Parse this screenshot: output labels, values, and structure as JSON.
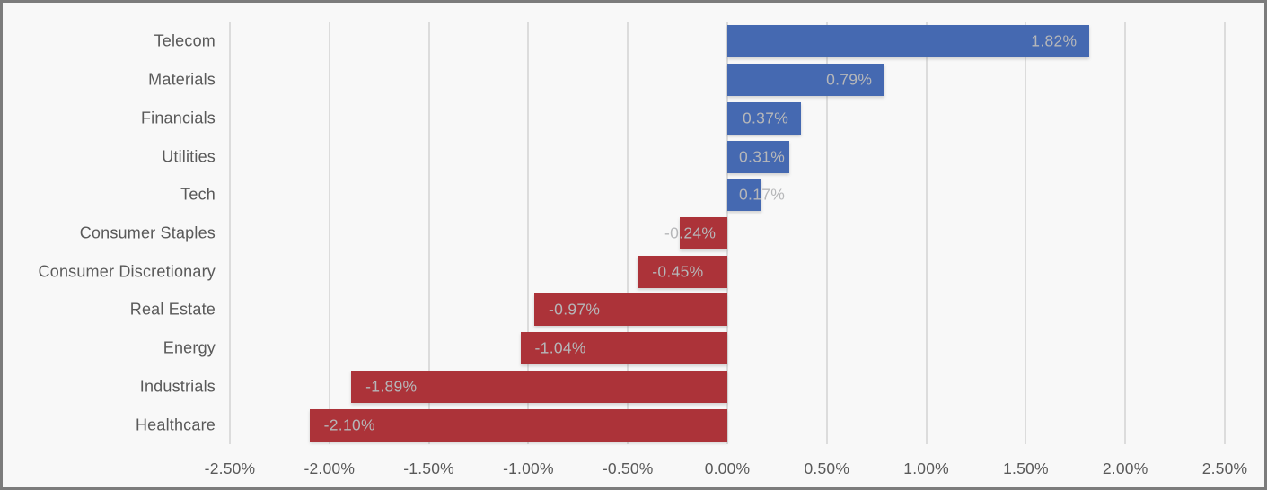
{
  "chart_data": {
    "type": "bar",
    "orientation": "horizontal",
    "title": "",
    "legend": "none",
    "grid": "vertical",
    "categories": [
      "Telecom",
      "Materials",
      "Financials",
      "Utilities",
      "Tech",
      "Consumer Staples",
      "Consumer Discretionary",
      "Real Estate",
      "Energy",
      "Industrials",
      "Healthcare"
    ],
    "values": [
      1.82,
      0.79,
      0.37,
      0.31,
      0.17,
      -0.24,
      -0.45,
      -0.97,
      -1.04,
      -1.89,
      -2.1
    ],
    "value_labels": [
      "1.82%",
      "0.79%",
      "0.37%",
      "0.31%",
      "0.17%",
      "-0.24%",
      "-0.45%",
      "-0.97%",
      "-1.04%",
      "-1.89%",
      "-2.10%"
    ],
    "x_axis": {
      "min": -2.5,
      "max": 2.5,
      "tick_step": 0.5,
      "tick_labels": [
        "-2.50%",
        "-2.00%",
        "-1.50%",
        "-1.00%",
        "-0.50%",
        "0.00%",
        "0.50%",
        "1.00%",
        "1.50%",
        "2.00%",
        "2.50%"
      ]
    },
    "colors": {
      "positive_bar": "#4569B1",
      "negative_bar": "#AC3339",
      "value_label": "#b6b7b9",
      "category_label": "#595959",
      "tick_label": "#595959",
      "gridline": "#dcdcdc",
      "background": "#f8f8f8",
      "frame_border": "#7c7c7c"
    }
  }
}
